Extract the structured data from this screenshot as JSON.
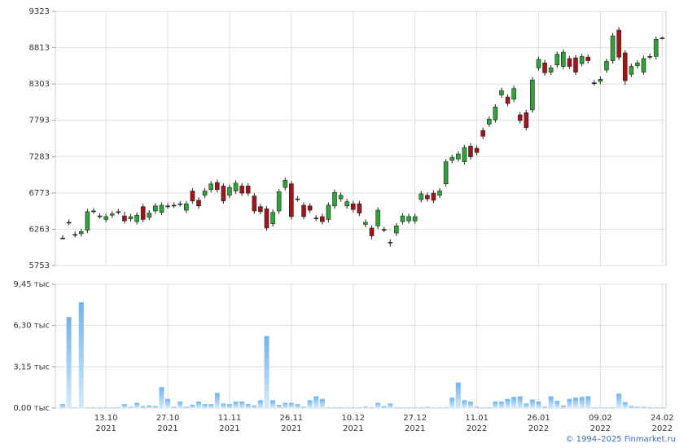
{
  "chart_data": [
    {
      "type": "candlestick",
      "ylim": [
        5753,
        9323
      ],
      "yticks": [
        5753,
        6263,
        6773,
        7283,
        7793,
        8303,
        8813,
        9323
      ],
      "up_color": "#2ea33a",
      "down_color": "#a0141c",
      "grid": true,
      "open": [
        6140,
        6360,
        6190,
        6200,
        6250,
        6520,
        6450,
        6400,
        6460,
        6510,
        6450,
        6410,
        6370,
        6580,
        6430,
        6520,
        6500,
        6590,
        6600,
        6620,
        6530,
        6800,
        6670,
        6740,
        6820,
        6920,
        6870,
        6740,
        6800,
        6870,
        6870,
        6730,
        6580,
        6550,
        6340,
        6520,
        6850,
        6900,
        6690,
        6600,
        6590,
        6420,
        6440,
        6400,
        6590,
        6690,
        6590,
        6620,
        6620,
        6330,
        6280,
        6310,
        6260,
        6080,
        6210,
        6370,
        6380,
        6380,
        6680,
        6740,
        6770,
        6740,
        6900,
        7230,
        7250,
        7210,
        7430,
        7400,
        7650,
        7740,
        7800,
        8150,
        8120,
        8090,
        7870,
        7900,
        7940,
        8530,
        8600,
        8470,
        8570,
        8550,
        8660,
        8670,
        8590,
        8680,
        8320,
        8340,
        8500,
        8630,
        9060,
        8740,
        8440,
        8560,
        8470,
        8690,
        8690,
        8950
      ],
      "high": [
        6180,
        6400,
        6230,
        6270,
        6550,
        6560,
        6490,
        6480,
        6520,
        6550,
        6510,
        6480,
        6500,
        6620,
        6530,
        6630,
        6640,
        6630,
        6640,
        6660,
        6660,
        6840,
        6710,
        6840,
        6940,
        6960,
        6910,
        6890,
        6950,
        6910,
        6910,
        6770,
        6620,
        6590,
        6540,
        6830,
        6990,
        6940,
        6730,
        6640,
        6630,
        6460,
        6480,
        6640,
        6820,
        6780,
        6690,
        6660,
        6660,
        6400,
        6320,
        6570,
        6300,
        6120,
        6350,
        6490,
        6480,
        6480,
        6800,
        6780,
        6810,
        6840,
        7250,
        7310,
        7360,
        7450,
        7470,
        7440,
        7690,
        7850,
        8020,
        8250,
        8160,
        8280,
        7910,
        7940,
        8400,
        8690,
        8640,
        8570,
        8760,
        8790,
        8700,
        8710,
        8730,
        8720,
        8360,
        8410,
        8660,
        9020,
        9100,
        8780,
        8590,
        8640,
        8700,
        8730,
        8970,
        8970
      ],
      "low": [
        6120,
        6320,
        6150,
        6160,
        6210,
        6480,
        6410,
        6360,
        6420,
        6470,
        6340,
        6370,
        6330,
        6360,
        6390,
        6480,
        6460,
        6550,
        6560,
        6580,
        6490,
        6620,
        6550,
        6700,
        6780,
        6780,
        6620,
        6700,
        6760,
        6730,
        6730,
        6480,
        6470,
        6240,
        6300,
        6480,
        6810,
        6400,
        6650,
        6400,
        6490,
        6380,
        6330,
        6360,
        6550,
        6650,
        6550,
        6500,
        6450,
        6290,
        6120,
        6270,
        6220,
        6020,
        6170,
        6330,
        6340,
        6340,
        6640,
        6650,
        6630,
        6700,
        6860,
        7190,
        7210,
        7170,
        7240,
        7300,
        7530,
        7700,
        7760,
        8110,
        7990,
        8050,
        7750,
        7650,
        7900,
        8490,
        8420,
        8430,
        8530,
        8510,
        8510,
        8430,
        8550,
        8590,
        8280,
        8300,
        8460,
        8590,
        8640,
        8290,
        8400,
        8520,
        8430,
        8650,
        8650,
        8930
      ],
      "close": [
        6140,
        6360,
        6190,
        6230,
        6510,
        6520,
        6450,
        6440,
        6480,
        6510,
        6380,
        6440,
        6460,
        6400,
        6490,
        6590,
        6600,
        6590,
        6600,
        6620,
        6620,
        6660,
        6590,
        6800,
        6900,
        6820,
        6660,
        6850,
        6910,
        6770,
        6770,
        6520,
        6510,
        6280,
        6500,
        6790,
        6950,
        6440,
        6690,
        6440,
        6530,
        6420,
        6370,
        6600,
        6780,
        6740,
        6650,
        6540,
        6490,
        6360,
        6170,
        6530,
        6260,
        6080,
        6310,
        6450,
        6440,
        6440,
        6760,
        6690,
        6670,
        6800,
        7210,
        7270,
        7320,
        7410,
        7280,
        7340,
        7570,
        7810,
        7980,
        8210,
        8030,
        8240,
        7790,
        7690,
        8360,
        8650,
        8460,
        8530,
        8720,
        8750,
        8550,
        8470,
        8690,
        8630,
        8320,
        8370,
        8620,
        8980,
        8680,
        8350,
        8550,
        8600,
        8660,
        8690,
        8930,
        8950
      ]
    },
    {
      "type": "bar",
      "color": "#7ab8ea",
      "ylim": [
        0,
        9.45
      ],
      "yticks": [
        {
          "value": 0,
          "label": "0,00 тыс"
        },
        {
          "value": 3.15,
          "label": "3,15 тыс"
        },
        {
          "value": 6.3,
          "label": "6,30 тыс"
        },
        {
          "value": 9.45,
          "label": "9,45 тыс"
        }
      ],
      "categories": [
        null,
        null,
        null,
        null,
        null,
        null,
        null,
        [
          "13.10",
          "2021"
        ],
        null,
        null,
        null,
        null,
        null,
        null,
        null,
        null,
        null,
        [
          "27.10",
          "2021"
        ],
        null,
        null,
        null,
        null,
        null,
        null,
        null,
        null,
        null,
        [
          "11.11",
          "2021"
        ],
        null,
        null,
        null,
        null,
        null,
        null,
        null,
        null,
        null,
        [
          "26.11",
          "2021"
        ],
        null,
        null,
        null,
        null,
        null,
        null,
        null,
        null,
        null,
        [
          "10.12",
          "2021"
        ],
        null,
        null,
        null,
        null,
        null,
        null,
        null,
        null,
        null,
        [
          "27.12",
          "2021"
        ],
        null,
        null,
        null,
        null,
        null,
        null,
        null,
        null,
        null,
        [
          "11.01",
          "2022"
        ],
        null,
        null,
        null,
        null,
        null,
        null,
        null,
        null,
        null,
        [
          "26.01",
          "2022"
        ],
        null,
        null,
        null,
        null,
        null,
        null,
        null,
        null,
        null,
        [
          "09.02",
          "2022"
        ],
        null,
        null,
        null,
        null,
        null,
        null,
        null,
        null,
        null,
        [
          "24.02",
          "2022"
        ]
      ],
      "values": [
        0.3,
        6.95,
        0.05,
        8.07,
        0.05,
        0.05,
        0.05,
        0.05,
        0.05,
        0.05,
        0.3,
        0.1,
        0.4,
        0.15,
        0.2,
        0.15,
        1.6,
        0.7,
        0.1,
        0.5,
        0.1,
        0.25,
        0.5,
        0.3,
        0.3,
        1.15,
        0.35,
        0.3,
        0.5,
        0.5,
        0.3,
        0.2,
        0.6,
        5.5,
        0.6,
        0.25,
        0.4,
        0.4,
        0.3,
        0.1,
        0.6,
        0.9,
        0.7,
        0.05,
        0.05,
        0.05,
        0.05,
        0.05,
        0.05,
        0.1,
        0.05,
        0.4,
        0.15,
        0.35,
        0.05,
        0.05,
        0.05,
        0.05,
        0.05,
        0.1,
        0.05,
        0.05,
        0.05,
        0.8,
        1.95,
        0.6,
        0.5,
        0.1,
        0.05,
        0.05,
        0.5,
        0.5,
        0.7,
        0.85,
        0.9,
        0.35,
        0.65,
        0.5,
        0.1,
        0.9,
        0.55,
        0.2,
        0.7,
        0.8,
        0.85,
        0.9,
        0.05,
        0.05,
        0.05,
        0.05,
        1.1,
        0.45,
        0.15,
        0.1,
        0.1,
        0.05,
        0.05,
        0.05
      ]
    }
  ],
  "footer": "© 1994–2025 Finmarket.ru"
}
